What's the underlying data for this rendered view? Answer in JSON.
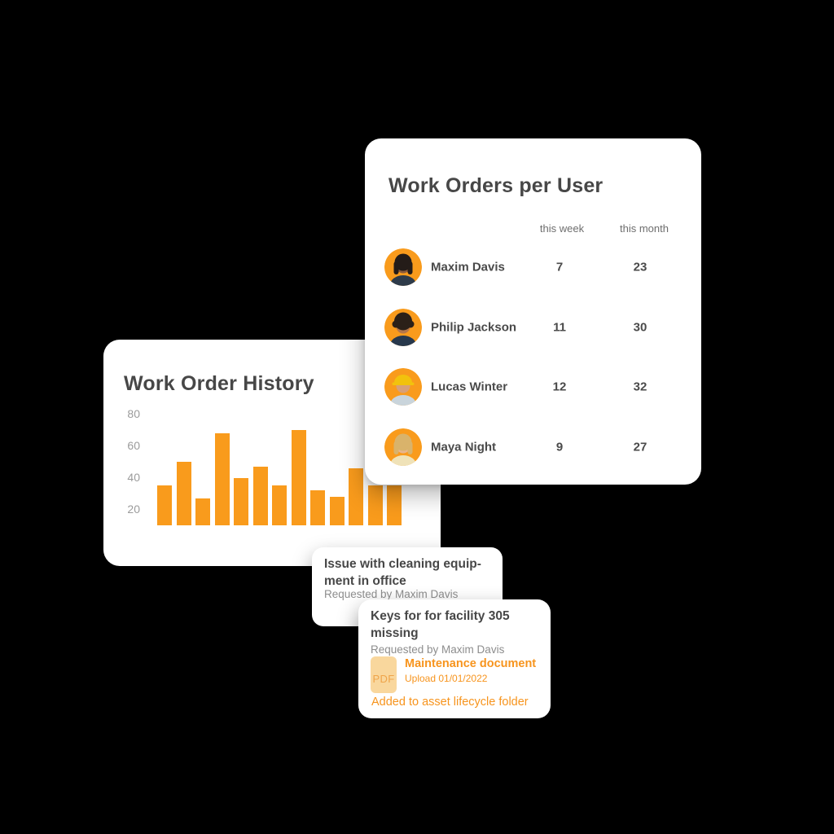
{
  "background": "#000000",
  "colors": {
    "orange": "#F7941D",
    "bar_orange": "#F99B1C",
    "avatar_bg": "#F99B1C",
    "title_gray": "#474747",
    "muted_gray": "#8D8D8D",
    "axis_gray": "#9B9B9B",
    "chip_bg": "#F9D79D"
  },
  "work_orders_per_user": {
    "title": "Work Orders per User",
    "columns": {
      "week": "this week",
      "month": "this month"
    },
    "rows": [
      {
        "name": "Maxim Davis",
        "week": "7",
        "month": "23",
        "avatar": {
          "icon": "avatar-maxim-davis",
          "skin": "#8A5A3C",
          "hair": "#241C18",
          "shirt": "#2E3B4A",
          "style": "long"
        }
      },
      {
        "name": "Philip Jackson",
        "week": "11",
        "month": "30",
        "avatar": {
          "icon": "avatar-philip-jackson",
          "skin": "#B5764A",
          "hair": "#2B2018",
          "shirt": "#27384C",
          "style": "curly"
        }
      },
      {
        "name": "Lucas Winter",
        "week": "12",
        "month": "32",
        "avatar": {
          "icon": "avatar-lucas-winter",
          "skin": "#D9A077",
          "hair": "#F2C20D",
          "shirt": "#C9D4DB",
          "style": "hat"
        }
      },
      {
        "name": "Maya Night",
        "week": "9",
        "month": "27",
        "avatar": {
          "icon": "avatar-maya-night",
          "skin": "#E8B58E",
          "hair": "#D9B36B",
          "shirt": "#EFE2B8",
          "style": "long"
        }
      }
    ]
  },
  "chart_data": {
    "type": "bar",
    "title": "Work Order History",
    "values": [
      35,
      50,
      27,
      68,
      40,
      47,
      35,
      70,
      32,
      28,
      46,
      35,
      35
    ],
    "categories": [
      "",
      "",
      "",
      "",
      "",
      "",
      "",
      "",
      "",
      "",
      "",
      "",
      ""
    ],
    "yticks": [
      20,
      40,
      60,
      80
    ],
    "ylim": [
      10,
      85
    ],
    "xlabel": "",
    "ylabel": "",
    "grid": false,
    "legend": false,
    "bar_color": "#F99B1C"
  },
  "issue_card": {
    "title_line1": "Issue with cleaning equip-",
    "title_line2": "ment in office",
    "subtitle": "Requested by Maxim Davis"
  },
  "keys_card": {
    "title_line1": "Keys for for facility 305",
    "title_line2": "missing",
    "subtitle": "Requested by Maxim Davis",
    "pdf_label": "PDF",
    "doc_title": "Maintenance document",
    "doc_meta": "Upload 01/01/2022",
    "footer_link": "Added to asset lifecycle folder"
  }
}
